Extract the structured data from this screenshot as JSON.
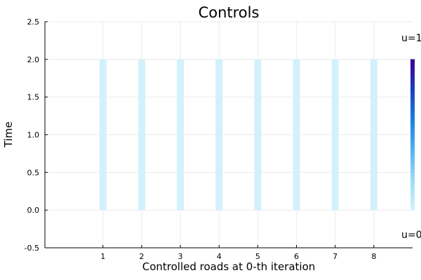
{
  "chart_data": {
    "type": "heatmap",
    "title": "Controls",
    "xlabel": "Controlled roads at 0-th iteration",
    "ylabel": "Time",
    "xticks": [
      1,
      2,
      3,
      4,
      5,
      6,
      7,
      8
    ],
    "yticks": [
      -0.5,
      0.0,
      0.5,
      1.0,
      1.5,
      2.0,
      2.5
    ],
    "xlim": [
      -0.5,
      9.0
    ],
    "ylim": [
      -0.5,
      2.5
    ],
    "grid": true,
    "colors": {
      "low": "#d2f1fc",
      "high": "#3a0090",
      "stops": [
        "#d2f1fc",
        "#9fdcf8",
        "#4fb3ef",
        "#1a7fe0",
        "#1c3fc2",
        "#3a0090"
      ]
    },
    "series": [
      {
        "x": 1,
        "t_start": 0.0,
        "t_end": 2.0,
        "u": 0.0
      },
      {
        "x": 2,
        "t_start": 0.0,
        "t_end": 2.0,
        "u": 0.0
      },
      {
        "x": 3,
        "t_start": 0.0,
        "t_end": 2.0,
        "u": 0.0
      },
      {
        "x": 4,
        "t_start": 0.0,
        "t_end": 2.0,
        "u": 0.0
      },
      {
        "x": 5,
        "t_start": 0.0,
        "t_end": 2.0,
        "u": 0.0
      },
      {
        "x": 6,
        "t_start": 0.0,
        "t_end": 2.0,
        "u": 0.0
      },
      {
        "x": 7,
        "t_start": 0.0,
        "t_end": 2.0,
        "u": 0.0
      },
      {
        "x": 8,
        "t_start": 0.0,
        "t_end": 2.0,
        "u": 0.0
      }
    ],
    "colorbar": {
      "x": 9,
      "t_start": 0.0,
      "t_end": 2.0,
      "label_top": "u=1",
      "label_bottom": "u=0"
    }
  }
}
